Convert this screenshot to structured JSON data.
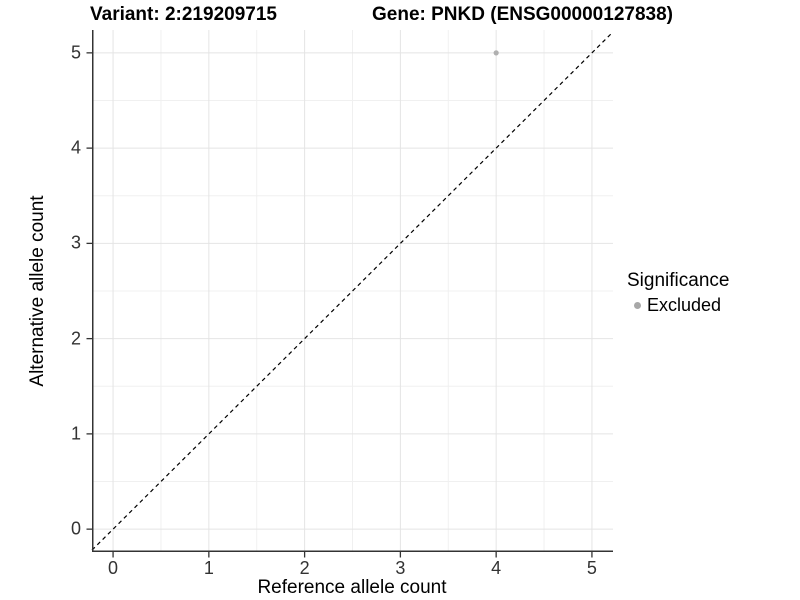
{
  "chart_data": {
    "type": "scatter",
    "title_left": "Variant: 2:219209715",
    "title_right": "Gene: PNKD (ENSG00000127838)",
    "xlabel": "Reference allele count",
    "ylabel": "Alternative allele count",
    "xlim": [
      -0.22,
      5.22
    ],
    "ylim": [
      -0.24,
      5.24
    ],
    "x_ticks": [
      0,
      1,
      2,
      3,
      4,
      5
    ],
    "y_ticks": [
      0,
      1,
      2,
      3,
      4,
      5
    ],
    "x_minor_ticks": [
      0.5,
      1.5,
      2.5,
      3.5,
      4.5
    ],
    "y_minor_ticks": [
      0.5,
      1.5,
      2.5,
      3.5,
      4.5
    ],
    "grid": "major and minor, light grey on white",
    "legend_position": "right",
    "series": [
      {
        "name": "Excluded",
        "color": "#b0b0b0",
        "marker_radius": 2.6,
        "points": [
          {
            "x": 4,
            "y": 5
          }
        ]
      }
    ],
    "identity_line": {
      "slope": 1,
      "intercept": 0,
      "style": "dashed",
      "color": "#000000"
    },
    "legend": {
      "title": "Significance",
      "items": [
        {
          "label": "Excluded",
          "color": "#a8a8a8"
        }
      ]
    }
  },
  "style": {
    "grid_major_color": "#e4e4e4",
    "grid_minor_color": "#f0f0f0",
    "axis_line_color": "#333333",
    "tick_mark_color": "#333333",
    "tick_label_color": "#333333",
    "background": "#ffffff"
  }
}
